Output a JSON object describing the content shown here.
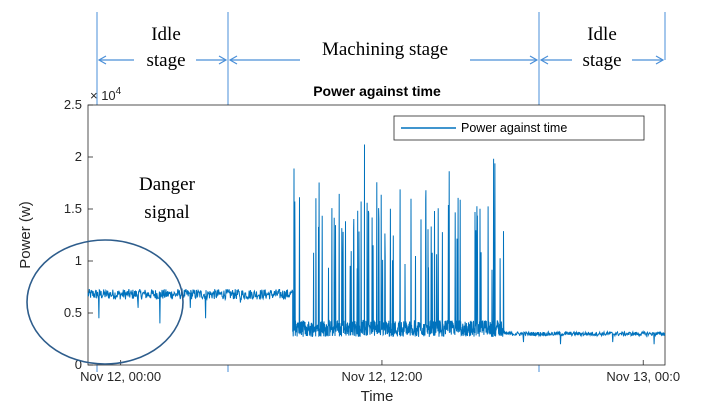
{
  "chart_data": {
    "type": "line",
    "title": "Power against time",
    "xlabel": "Time",
    "ylabel": "Power (w)",
    "y_exponent_label": "× 10",
    "y_exponent_power": "4",
    "ylim": [
      0,
      2.5
    ],
    "y_ticks": [
      "0",
      "0.5",
      "1",
      "1.5",
      "2",
      "2.5"
    ],
    "x_ticks": [
      "Nov 12, 00:00",
      "Nov 12, 12:00",
      "Nov 13, 00:0"
    ],
    "x_unit": "hours from Nov 12, 00:00",
    "xlim": [
      -1.5,
      25
    ],
    "grid": false,
    "legend_position": "top-right",
    "series": [
      {
        "name": "Power against time",
        "color": "#0072BD",
        "segments": [
          {
            "phase": "idle",
            "x_range": [
              -1.5,
              7.9
            ],
            "baseline": 0.68,
            "noise": 0.05,
            "dips": [
              [
                -1,
                0.45
              ],
              [
                0.8,
                0.55
              ],
              [
                1.8,
                0.4
              ],
              [
                3.2,
                0.55
              ],
              [
                3.9,
                0.45
              ],
              [
                5.5,
                0.6
              ]
            ]
          },
          {
            "phase": "machining",
            "x_range": [
              7.9,
              17.6
            ],
            "baseline": 0.35,
            "noise": 0.08,
            "peak_min": 0.9,
            "peak_max": 2.12
          },
          {
            "phase": "idle",
            "x_range": [
              17.6,
              25
            ],
            "baseline": 0.3,
            "noise": 0.02,
            "dips": [
              [
                18.5,
                0.22
              ],
              [
                20.2,
                0.2
              ],
              [
                22.6,
                0.22
              ],
              [
                24.5,
                0.2
              ]
            ]
          }
        ]
      }
    ]
  },
  "annotations": {
    "idle_stage_1": [
      "Idle",
      "stage"
    ],
    "machining_stage": "Machining stage",
    "idle_stage_2": [
      "Idle",
      "stage"
    ],
    "danger_signal": [
      "Danger",
      "signal"
    ]
  }
}
